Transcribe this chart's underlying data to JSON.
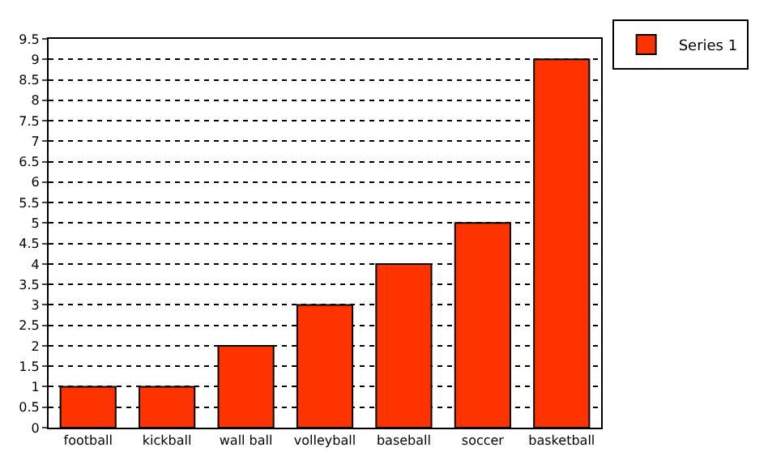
{
  "chart_data": {
    "type": "bar",
    "categories": [
      "football",
      "kickball",
      "wall ball",
      "volleyball",
      "baseball",
      "soccer",
      "basketball"
    ],
    "series": [
      {
        "name": "Series 1",
        "color": "#ff3300",
        "values": [
          1,
          1,
          2,
          3,
          4,
          5,
          9
        ]
      }
    ],
    "ylim": [
      0,
      9.5
    ],
    "yticks": [
      0,
      0.5,
      1,
      1.5,
      2,
      2.5,
      3,
      3.5,
      4,
      4.5,
      5,
      5.5,
      6,
      6.5,
      7,
      7.5,
      8,
      8.5,
      9,
      9.5
    ],
    "grid": "y",
    "legend": "top right"
  }
}
